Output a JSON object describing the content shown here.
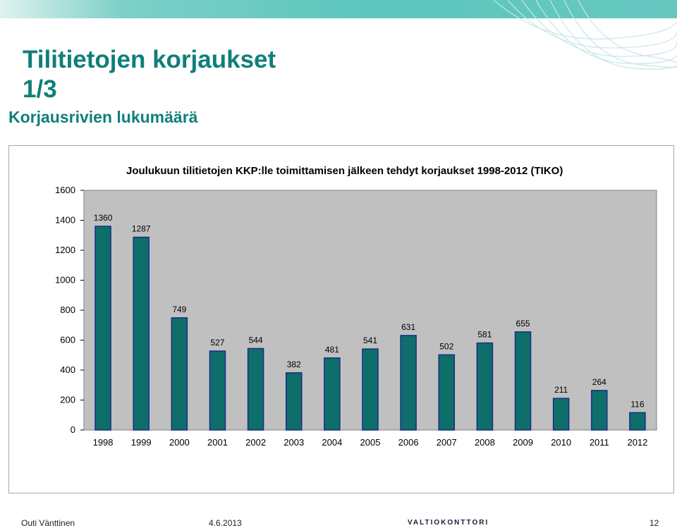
{
  "slide": {
    "title_line1": "Tilitietojen korjaukset",
    "title_line2": "1/3",
    "subtitle": "Korjausrivien lukumäärä"
  },
  "footer": {
    "author": "Outi Vänttinen",
    "date": "4.6.2013",
    "logo_text": "VALTIOKONTTORI",
    "page": "12"
  },
  "colors": {
    "brand": "#0f7f7a",
    "bar_fill": "#0e6f6a",
    "bar_stroke": "#1a2a8a",
    "plot_bg": "#c0c0c0"
  },
  "chart_data": {
    "type": "bar",
    "title": "Joulukuun tilitietojen KKP:lle toimittamisen jälkeen tehdyt korjaukset 1998-2012 (TIKO)",
    "xlabel": "",
    "ylabel": "",
    "categories": [
      "1998",
      "1999",
      "2000",
      "2001",
      "2002",
      "2003",
      "2004",
      "2005",
      "2006",
      "2007",
      "2008",
      "2009",
      "2010",
      "2011",
      "2012"
    ],
    "values": [
      1360,
      1287,
      749,
      527,
      544,
      382,
      481,
      541,
      631,
      502,
      581,
      655,
      211,
      264,
      116
    ],
    "ylim": [
      0,
      1600
    ],
    "yticks": [
      0,
      200,
      400,
      600,
      800,
      1000,
      1200,
      1400,
      1600
    ],
    "grid": false,
    "legend": "none"
  }
}
